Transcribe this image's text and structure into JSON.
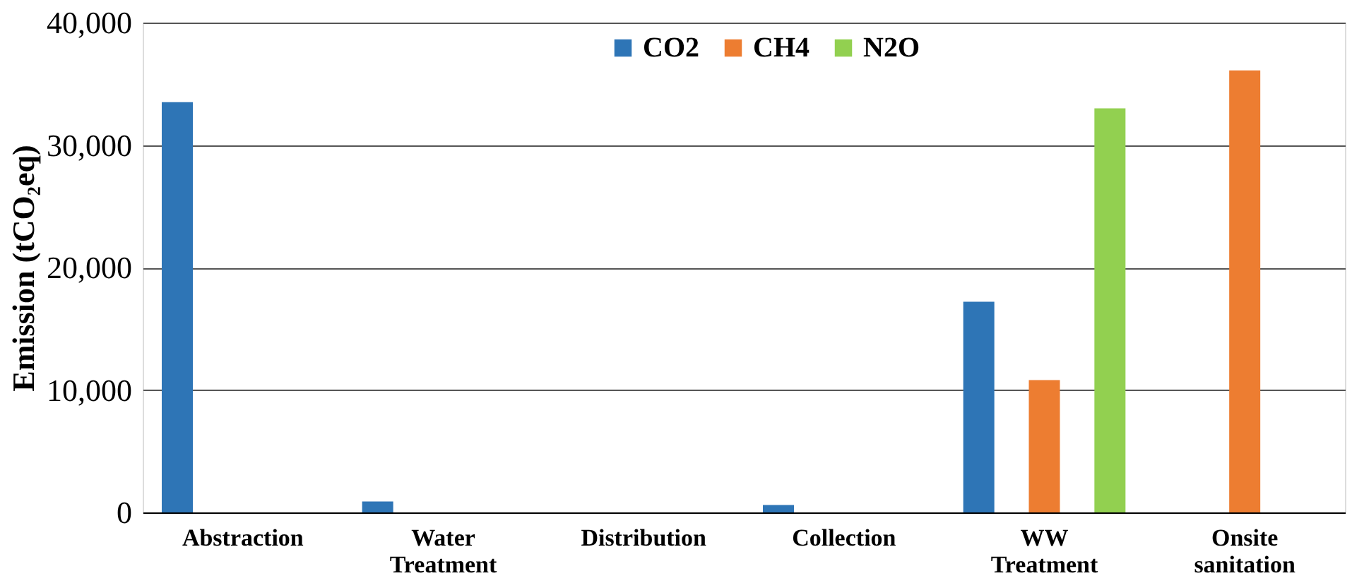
{
  "chart_data": {
    "type": "bar",
    "ylabel": "Emission (tCO₂eq)",
    "categories": [
      "Abstraction",
      "Water Treatment",
      "Distribution",
      "Collection",
      "WW Treatment",
      "Onsite sanitation"
    ],
    "series": [
      {
        "name": "CO2",
        "color": "#2e75b6",
        "values": [
          33500,
          900,
          null,
          600,
          17200,
          null
        ]
      },
      {
        "name": "CH4",
        "color": "#ed7d31",
        "values": [
          null,
          null,
          null,
          null,
          10800,
          36100
        ]
      },
      {
        "name": "N2O",
        "color": "#92d050",
        "values": [
          null,
          null,
          null,
          null,
          33000,
          null
        ]
      }
    ],
    "ylim": [
      0,
      40000
    ],
    "yticks": [
      0,
      {
        "value": 10000,
        "label": "10,000"
      },
      {
        "value": 20000,
        "label": "20,000"
      },
      {
        "value": 30000,
        "label": "30,000"
      },
      {
        "value": 40000,
        "label": "40,000"
      }
    ],
    "grid": "y",
    "legend": "top"
  }
}
